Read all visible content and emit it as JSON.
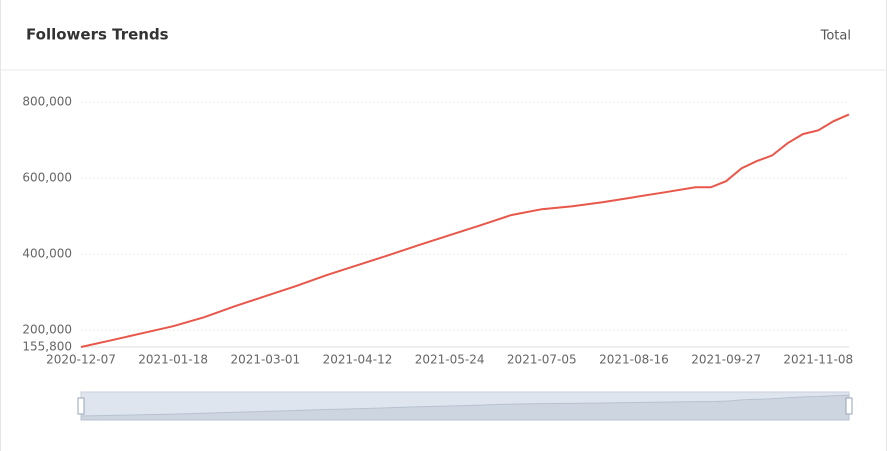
{
  "header_action": "Total",
  "chart_data": {
    "type": "line",
    "title": "Followers Trends",
    "x": [
      "2020-12-07",
      "2020-12-21",
      "2021-01-04",
      "2021-01-18",
      "2021-02-01",
      "2021-02-15",
      "2021-03-01",
      "2021-03-15",
      "2021-03-29",
      "2021-04-12",
      "2021-04-26",
      "2021-05-10",
      "2021-05-24",
      "2021-06-07",
      "2021-06-21",
      "2021-07-05",
      "2021-07-19",
      "2021-08-02",
      "2021-08-16",
      "2021-08-30",
      "2021-09-13",
      "2021-09-20",
      "2021-09-27",
      "2021-10-04",
      "2021-10-11",
      "2021-10-18",
      "2021-10-25",
      "2021-11-01",
      "2021-11-08",
      "2021-11-15",
      "2021-11-22"
    ],
    "values": [
      155800,
      173700,
      192000,
      210500,
      234000,
      263000,
      289500,
      316000,
      345000,
      371000,
      397000,
      424000,
      450000,
      476000,
      503000,
      518500,
      526000,
      537000,
      550000,
      563000,
      576000,
      576000,
      592000,
      626000,
      645000,
      660000,
      692000,
      716000,
      726000,
      750000,
      768000
    ],
    "color": "#e8574a",
    "xlim": [
      "2020-12-07",
      "2021-11-22"
    ],
    "xticks": [
      "2020-12-07",
      "2021-01-18",
      "2021-03-01",
      "2021-04-12",
      "2021-05-24",
      "2021-07-05",
      "2021-08-16",
      "2021-09-27",
      "2021-11-08"
    ],
    "ylim": [
      155800,
      800000
    ],
    "yticks": [
      {
        "value": 155800,
        "label": "155,800"
      },
      {
        "value": 200000,
        "label": "200,000"
      },
      {
        "value": 400000,
        "label": "400,000"
      },
      {
        "value": 600000,
        "label": "600,000"
      },
      {
        "value": 800000,
        "label": "800,000"
      }
    ],
    "grid": true
  }
}
